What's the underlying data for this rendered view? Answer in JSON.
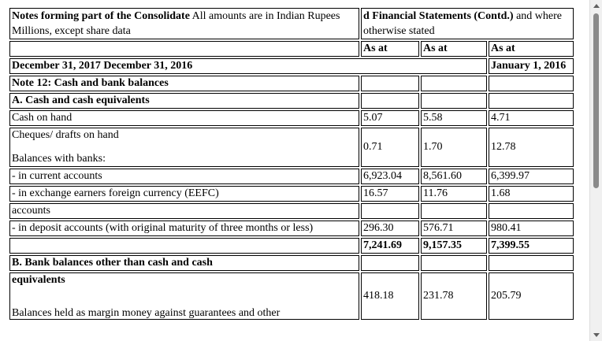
{
  "header": {
    "left_bold": "Notes forming part of the Consolidate",
    "left_normal": " All amounts are in Indian Rupees Millions, except share data",
    "right_bold": "d Financial Statements (Contd.)",
    "right_normal": " and where otherwise stated",
    "as_at_1": "As at",
    "as_at_2": "As at",
    "as_at_3": "As at",
    "dates_left": "December 31, 2017 December 31, 2016",
    "date_right": "January 1, 2016"
  },
  "note_title": "Note 12: Cash and bank balances",
  "section_a": {
    "title": "A. Cash and cash equivalents",
    "rows": {
      "cash_on_hand": {
        "label": "Cash on hand",
        "v1": "5.07",
        "v2": "5.58",
        "v3": "4.71"
      },
      "cheques": {
        "label": "Cheques/ drafts on hand",
        "sublabel": "Balances with banks:",
        "v1": "0.71",
        "v2": "1.70",
        "v3": "12.78"
      },
      "current_accounts": {
        "label": "- in current accounts",
        "v1": "6,923.04",
        "v2": "8,561.60",
        "v3": "6,399.97"
      },
      "eefc": {
        "label": "- in exchange earners foreign currency (EEFC)",
        "v1": "16.57",
        "v2": "11.76",
        "v3": "1.68"
      },
      "accounts": {
        "label": "accounts"
      },
      "deposit": {
        "label": "- in deposit accounts (with original maturity of three months or less)",
        "v1": "296.30",
        "v2": "576.71",
        "v3": "980.41"
      },
      "total": {
        "v1": "7,241.69",
        "v2": "9,157.35",
        "v3": "7,399.55"
      }
    }
  },
  "section_b": {
    "title": "B. Bank balances other than cash and cash",
    "title_cont": "equivalents",
    "margin": {
      "label": "Balances held as margin money against guarantees and other",
      "v1": "418.18",
      "v2": "231.78",
      "v3": "205.79"
    }
  }
}
